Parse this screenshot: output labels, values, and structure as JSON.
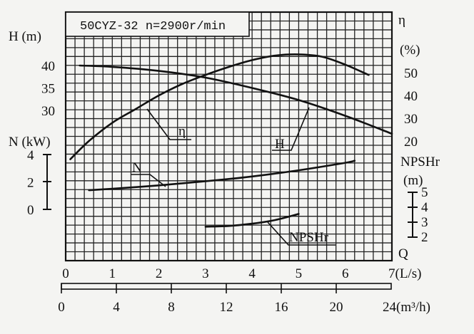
{
  "chart_data": {
    "type": "line",
    "title": "50CYZ-32 n=2900r/min",
    "x_axis": {
      "label": "(L/s)",
      "unit_prefix": "7",
      "range": [
        0,
        7
      ],
      "ticks": [
        "0",
        "1",
        "2",
        "3",
        "4",
        "5",
        "6"
      ],
      "end_label": "7(L/s)"
    },
    "x_axis_secondary": {
      "label": "24(m³/h)",
      "range": [
        0,
        24
      ],
      "ticks": [
        "0",
        "4",
        "8",
        "12",
        "16",
        "20"
      ],
      "end_label": "24(m³/h)"
    },
    "y_axis_H": {
      "label": "H (m)",
      "ticks": [
        "40",
        "35",
        "30"
      ],
      "tick_values": [
        40,
        35,
        30
      ]
    },
    "y_axis_N": {
      "label": "N (kW)",
      "ticks": [
        "4",
        "2",
        "0"
      ],
      "tick_values": [
        4,
        2,
        0
      ]
    },
    "y_axis_eta": {
      "label": "η",
      "unit": "(%)",
      "ticks": [
        "50",
        "40",
        "30",
        "20"
      ],
      "tick_values": [
        50,
        40,
        30,
        20
      ]
    },
    "y_axis_npsh": {
      "label": "NPSHr",
      "unit": "(m)",
      "ticks": [
        "5",
        "4",
        "3",
        "2"
      ],
      "tick_values": [
        5,
        4,
        3,
        2
      ]
    },
    "corner_label": "Q",
    "series": [
      {
        "name": "H",
        "axis": "H",
        "x": [
          0.3,
          1.0,
          2.0,
          3.0,
          4.0,
          5.0,
          6.0,
          7.0
        ],
        "y": [
          40.0,
          39.7,
          38.8,
          37.3,
          35.0,
          32.3,
          28.8,
          24.8
        ]
      },
      {
        "name": "η",
        "axis": "eta",
        "x": [
          0.1,
          0.5,
          1.0,
          1.5,
          2.0,
          2.5,
          3.0,
          3.5,
          4.0,
          4.5,
          5.0,
          5.5,
          6.0,
          6.5
        ],
        "y": [
          12,
          20,
          28,
          34,
          40,
          45,
          49,
          52.5,
          55.5,
          57.5,
          58,
          57,
          53.5,
          49
        ]
      },
      {
        "name": "N",
        "axis": "N",
        "x": [
          0.5,
          1.0,
          2.0,
          3.0,
          4.0,
          5.0,
          6.0,
          6.2
        ],
        "y": [
          1.4,
          1.5,
          1.75,
          2.05,
          2.4,
          2.85,
          3.4,
          3.55
        ]
      },
      {
        "name": "NPSHr",
        "axis": "npsh",
        "x": [
          3.0,
          3.5,
          4.0,
          4.5,
          5.0
        ],
        "y": [
          2.7,
          2.75,
          2.9,
          3.15,
          3.55
        ]
      }
    ],
    "curve_labels": [
      "η",
      "H",
      "N",
      "NPSHr"
    ],
    "grid": true
  }
}
